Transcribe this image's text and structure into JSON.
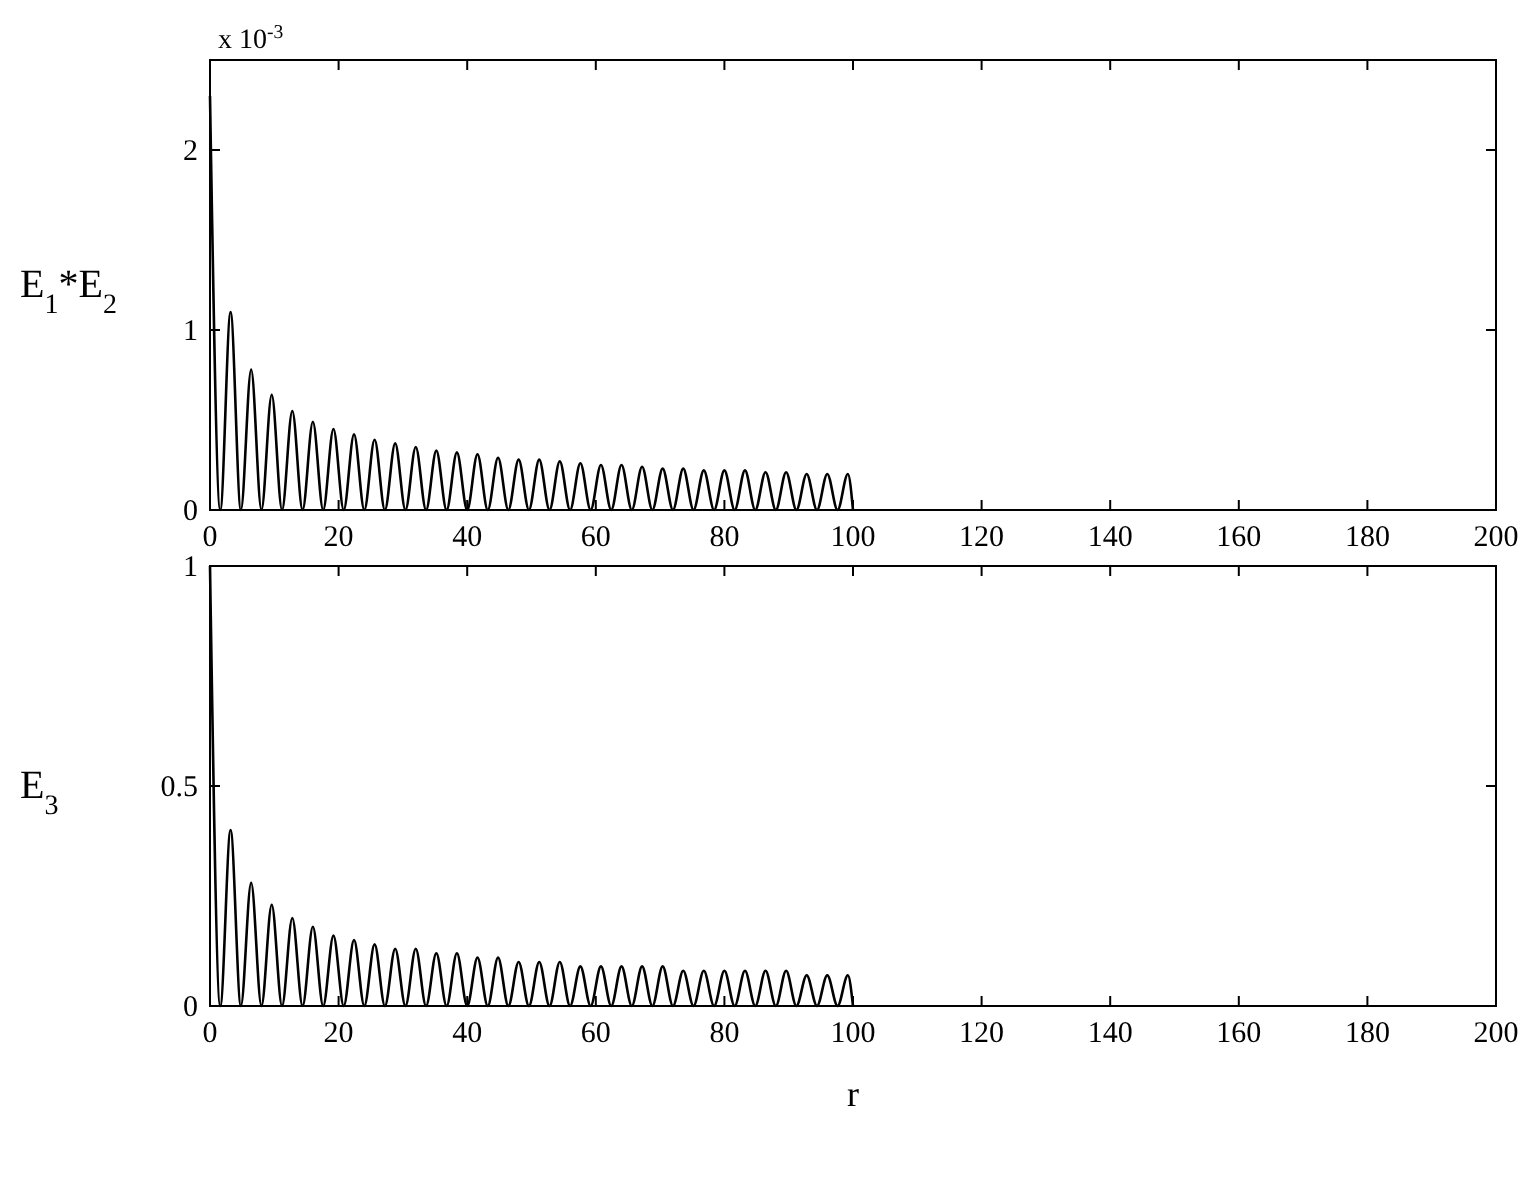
{
  "chart_data": [
    {
      "type": "line",
      "ylabel": "E$_{1}$*E$_{2}$",
      "annotations": [
        "x 10$^{-3}$"
      ],
      "xlim": [
        0,
        200
      ],
      "xticks": [
        0,
        20,
        40,
        60,
        80,
        100,
        120,
        140,
        160,
        180,
        200
      ],
      "ylim": [
        0,
        2.5
      ],
      "yticks": [
        0,
        1,
        2
      ],
      "grid": false,
      "marker": "none",
      "line_style": "solid",
      "x": [
        0,
        1.6,
        3.2,
        4.8,
        6.4,
        8,
        9.6,
        11.2,
        12.8,
        14.4,
        16,
        17.6,
        19.2,
        20.8,
        22.4,
        24,
        25.6,
        27.2,
        28.8,
        30.4,
        32,
        33.6,
        35.2,
        36.8,
        38.4,
        40,
        41.6,
        43.2,
        44.8,
        46.4,
        48,
        49.6,
        51.2,
        52.8,
        54.4,
        56,
        57.6,
        59.2,
        60.8,
        62.4,
        64,
        65.6,
        67.2,
        68.8,
        70.4,
        72,
        73.6,
        75.2,
        76.8,
        78.4,
        80,
        81.6,
        83.2,
        84.8,
        86.4,
        88,
        89.6,
        91.2,
        92.8,
        94.4,
        96,
        97.6,
        99.2,
        100
      ],
      "series": [
        {
          "color": "#000000",
          "values": [
            2.3,
            0,
            1.1,
            0,
            0.78,
            0,
            0.64,
            0,
            0.55,
            0,
            0.49,
            0,
            0.45,
            0,
            0.42,
            0,
            0.39,
            0,
            0.37,
            0,
            0.35,
            0,
            0.33,
            0,
            0.32,
            0,
            0.31,
            0,
            0.29,
            0,
            0.28,
            0,
            0.28,
            0,
            0.27,
            0,
            0.26,
            0,
            0.25,
            0,
            0.25,
            0,
            0.24,
            0,
            0.23,
            0,
            0.23,
            0,
            0.22,
            0,
            0.22,
            0,
            0.22,
            0,
            0.21,
            0,
            0.21,
            0,
            0.2,
            0,
            0.2,
            0,
            0.2,
            0
          ]
        }
      ]
    },
    {
      "type": "line",
      "ylabel": "E$_{3}$",
      "xlabel": "r",
      "xlim": [
        0,
        200
      ],
      "xticks": [
        0,
        20,
        40,
        60,
        80,
        100,
        120,
        140,
        160,
        180,
        200
      ],
      "ylim": [
        0,
        1
      ],
      "yticks": [
        0,
        0.5,
        1
      ],
      "grid": false,
      "marker": "none",
      "line_style": "solid",
      "x": [
        0,
        1.6,
        3.2,
        4.8,
        6.4,
        8,
        9.6,
        11.2,
        12.8,
        14.4,
        16,
        17.6,
        19.2,
        20.8,
        22.4,
        24,
        25.6,
        27.2,
        28.8,
        30.4,
        32,
        33.6,
        35.2,
        36.8,
        38.4,
        40,
        41.6,
        43.2,
        44.8,
        46.4,
        48,
        49.6,
        51.2,
        52.8,
        54.4,
        56,
        57.6,
        59.2,
        60.8,
        62.4,
        64,
        65.6,
        67.2,
        68.8,
        70.4,
        72,
        73.6,
        75.2,
        76.8,
        78.4,
        80,
        81.6,
        83.2,
        84.8,
        86.4,
        88,
        89.6,
        91.2,
        92.8,
        94.4,
        96,
        97.6,
        99.2,
        100
      ],
      "series": [
        {
          "color": "#000000",
          "values": [
            1,
            0,
            0.4,
            0,
            0.28,
            0,
            0.23,
            0,
            0.2,
            0,
            0.18,
            0,
            0.16,
            0,
            0.15,
            0,
            0.14,
            0,
            0.13,
            0,
            0.13,
            0,
            0.12,
            0,
            0.12,
            0,
            0.11,
            0,
            0.11,
            0,
            0.1,
            0,
            0.1,
            0,
            0.1,
            0,
            0.09,
            0,
            0.09,
            0,
            0.09,
            0,
            0.09,
            0,
            0.09,
            0,
            0.08,
            0,
            0.08,
            0,
            0.08,
            0,
            0.08,
            0,
            0.08,
            0,
            0.08,
            0,
            0.07,
            0,
            0.07,
            0,
            0.07,
            0
          ]
        }
      ]
    }
  ]
}
